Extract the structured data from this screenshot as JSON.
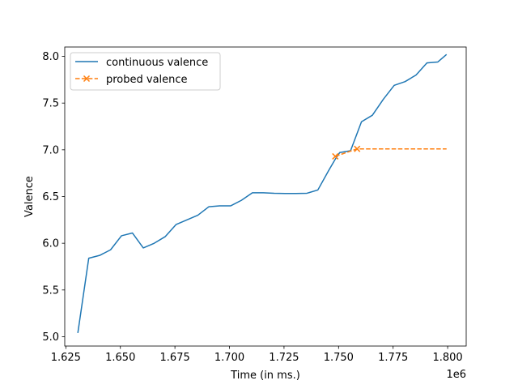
{
  "chart_data": {
    "type": "line",
    "title": "",
    "xlabel": "Time (in ms.)",
    "ylabel": "Valence",
    "x_offset_label": "1e6",
    "xlim": [
      1.6245,
      1.8085
    ],
    "ylim": [
      4.9,
      8.1
    ],
    "xticks": [
      1.625,
      1.65,
      1.675,
      1.7,
      1.725,
      1.75,
      1.775,
      1.8
    ],
    "xtick_labels": [
      "1.625",
      "1.650",
      "1.675",
      "1.700",
      "1.725",
      "1.750",
      "1.775",
      "1.800"
    ],
    "yticks": [
      5.0,
      5.5,
      6.0,
      6.5,
      7.0,
      7.5,
      8.0
    ],
    "ytick_labels": [
      "5.0",
      "5.5",
      "6.0",
      "6.5",
      "7.0",
      "7.5",
      "8.0"
    ],
    "grid": false,
    "legend": "upper-left",
    "series": [
      {
        "name": "continuous valence",
        "color": "#1f77b4",
        "style": "solid",
        "marker": "none",
        "x": [
          1.6305,
          1.6355,
          1.6405,
          1.6455,
          1.6505,
          1.6555,
          1.6605,
          1.6655,
          1.6705,
          1.6755,
          1.6805,
          1.6855,
          1.6905,
          1.6955,
          1.7005,
          1.7055,
          1.7105,
          1.7155,
          1.7205,
          1.7255,
          1.7305,
          1.7355,
          1.7405,
          1.7455,
          1.7485,
          1.7505,
          1.7555,
          1.7605,
          1.7655,
          1.7705,
          1.7755,
          1.7805,
          1.7855,
          1.7905,
          1.7955,
          1.7995
        ],
        "y": [
          5.04,
          5.84,
          5.87,
          5.93,
          6.08,
          6.11,
          5.95,
          6.0,
          6.07,
          6.2,
          6.25,
          6.3,
          6.39,
          6.4,
          6.4,
          6.46,
          6.54,
          6.54,
          6.535,
          6.533,
          6.533,
          6.535,
          6.57,
          6.78,
          6.9,
          6.97,
          6.99,
          7.3,
          7.37,
          7.54,
          7.69,
          7.73,
          7.8,
          7.93,
          7.94,
          8.02
        ]
      },
      {
        "name": "probed valence",
        "color": "#ff7f0e",
        "style": "dashed",
        "marker": "x",
        "x": [
          1.7485,
          1.7585,
          1.7995
        ],
        "y": [
          6.93,
          7.01,
          7.01
        ],
        "marker_indices": [
          0,
          1
        ]
      }
    ]
  }
}
